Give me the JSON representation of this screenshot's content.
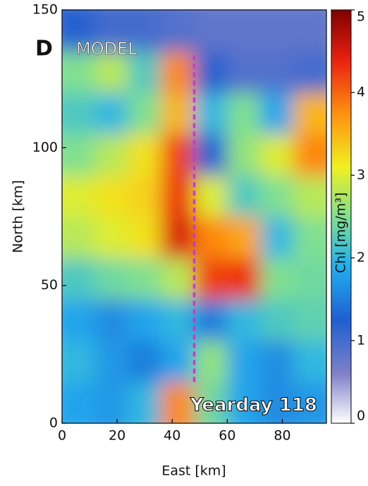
{
  "chart_data": {
    "type": "heatmap",
    "panel_label": "D",
    "annotation": "MODEL",
    "subtitle": "Yearday 118",
    "xlabel": "East [km]",
    "ylabel": "North [km]",
    "colorbar_label": "Chl [mg/m³]",
    "xlim": [
      0,
      96
    ],
    "ylim": [
      0,
      150
    ],
    "xticks": [
      0,
      20,
      40,
      60,
      80
    ],
    "yticks": [
      0,
      50,
      100,
      150
    ],
    "clim": [
      0,
      5
    ],
    "cticks": [
      0,
      1,
      2,
      3,
      4,
      5
    ],
    "colormap": "jet",
    "x_bins": [
      0,
      12,
      24,
      36,
      48,
      60,
      72,
      84,
      96
    ],
    "y_bins": [
      0,
      15,
      30,
      45,
      60,
      75,
      90,
      105,
      120,
      135,
      150
    ],
    "values": [
      [
        1.8,
        1.7,
        2.0,
        3.8,
        2.4,
        1.8,
        1.6,
        1.7
      ],
      [
        2.0,
        1.7,
        1.5,
        1.8,
        2.6,
        1.8,
        1.6,
        2.0
      ],
      [
        1.8,
        1.6,
        1.8,
        2.0,
        1.5,
        2.0,
        2.2,
        2.3
      ],
      [
        2.2,
        2.4,
        2.5,
        2.8,
        4.2,
        4.3,
        2.5,
        2.4
      ],
      [
        2.8,
        3.0,
        3.2,
        4.5,
        3.8,
        3.6,
        2.0,
        2.5
      ],
      [
        3.0,
        3.2,
        3.3,
        4.3,
        3.0,
        2.2,
        2.5,
        2.8
      ],
      [
        2.5,
        2.8,
        3.2,
        4.2,
        1.3,
        2.6,
        3.0,
        3.8
      ],
      [
        2.2,
        2.0,
        2.5,
        3.5,
        2.0,
        2.5,
        1.8,
        3.5
      ],
      [
        2.5,
        2.8,
        2.2,
        3.8,
        1.2,
        0.9,
        0.9,
        1.0
      ],
      [
        1.2,
        1.0,
        1.0,
        0.9,
        0.8,
        0.8,
        0.8,
        0.8
      ]
    ],
    "transect": {
      "color": "#c040c0",
      "x": 48,
      "y": [
        15,
        135
      ]
    }
  }
}
